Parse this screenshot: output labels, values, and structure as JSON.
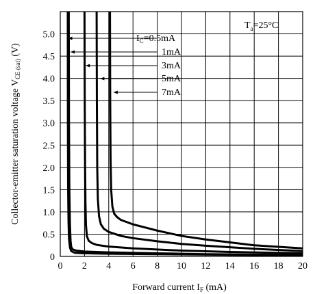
{
  "chart_data": {
    "type": "line",
    "ylabel_main": "Collector-emitter saturation voltage V",
    "ylabel_sub": "CE (sat)",
    "ylabel_unit": " (V)",
    "xlabel_main": "Forward current I",
    "xlabel_sub": "F",
    "xlabel_unit": " (mA)",
    "condition_main": "T",
    "condition_sub": "a",
    "condition_rest": "=25°C",
    "xlim": [
      0,
      20
    ],
    "ylim": [
      0,
      5.5
    ],
    "x_ticks": [
      "0",
      "2",
      "4",
      "6",
      "8",
      "10",
      "12",
      "14",
      "16",
      "18",
      "20"
    ],
    "y_ticks": [
      "0",
      "0.5",
      "1.0",
      "1.5",
      "2.0",
      "2.5",
      "3.0",
      "3.5",
      "4.0",
      "4.5",
      "5.0"
    ],
    "grid": true,
    "series_label_prefix_main": "I",
    "series_label_prefix_sub": "C",
    "series": [
      {
        "name": "=0.5mA",
        "x": [
          0.62,
          0.63,
          0.65,
          0.68,
          0.72,
          0.8,
          0.9,
          1.2,
          2,
          4,
          8,
          12,
          20
        ],
        "y": [
          5.5,
          3.0,
          1.5,
          0.8,
          0.4,
          0.2,
          0.12,
          0.08,
          0.07,
          0.06,
          0.05,
          0.04,
          0.02
        ]
      },
      {
        "name": "1mA",
        "x": [
          0.7,
          0.72,
          0.75,
          0.8,
          0.85,
          0.9,
          1.0,
          1.3,
          2,
          4,
          8,
          12,
          20
        ],
        "y": [
          5.5,
          3.0,
          1.5,
          0.7,
          0.35,
          0.22,
          0.16,
          0.13,
          0.11,
          0.09,
          0.07,
          0.05,
          0.03
        ]
      },
      {
        "name": "3mA",
        "x": [
          2.0,
          2.02,
          2.05,
          2.08,
          2.12,
          2.2,
          2.35,
          2.6,
          3,
          4,
          6,
          10,
          14,
          20
        ],
        "y": [
          5.5,
          3.5,
          2.0,
          1.2,
          0.7,
          0.45,
          0.35,
          0.3,
          0.26,
          0.22,
          0.18,
          0.13,
          0.1,
          0.07
        ]
      },
      {
        "name": "5mA",
        "x": [
          3.0,
          3.02,
          3.05,
          3.1,
          3.2,
          3.35,
          3.6,
          4,
          5,
          6,
          8,
          10,
          12,
          16,
          20
        ],
        "y": [
          5.5,
          3.5,
          2.0,
          1.3,
          0.9,
          0.72,
          0.62,
          0.55,
          0.46,
          0.41,
          0.34,
          0.28,
          0.24,
          0.17,
          0.12
        ]
      },
      {
        "name": "7mA",
        "x": [
          4.1,
          4.12,
          4.15,
          4.2,
          4.3,
          4.45,
          4.7,
          5,
          6,
          7,
          8,
          10,
          12,
          16,
          20
        ],
        "y": [
          5.5,
          3.5,
          2.2,
          1.5,
          1.12,
          0.96,
          0.88,
          0.82,
          0.72,
          0.65,
          0.58,
          0.46,
          0.38,
          0.25,
          0.18
        ]
      }
    ]
  }
}
